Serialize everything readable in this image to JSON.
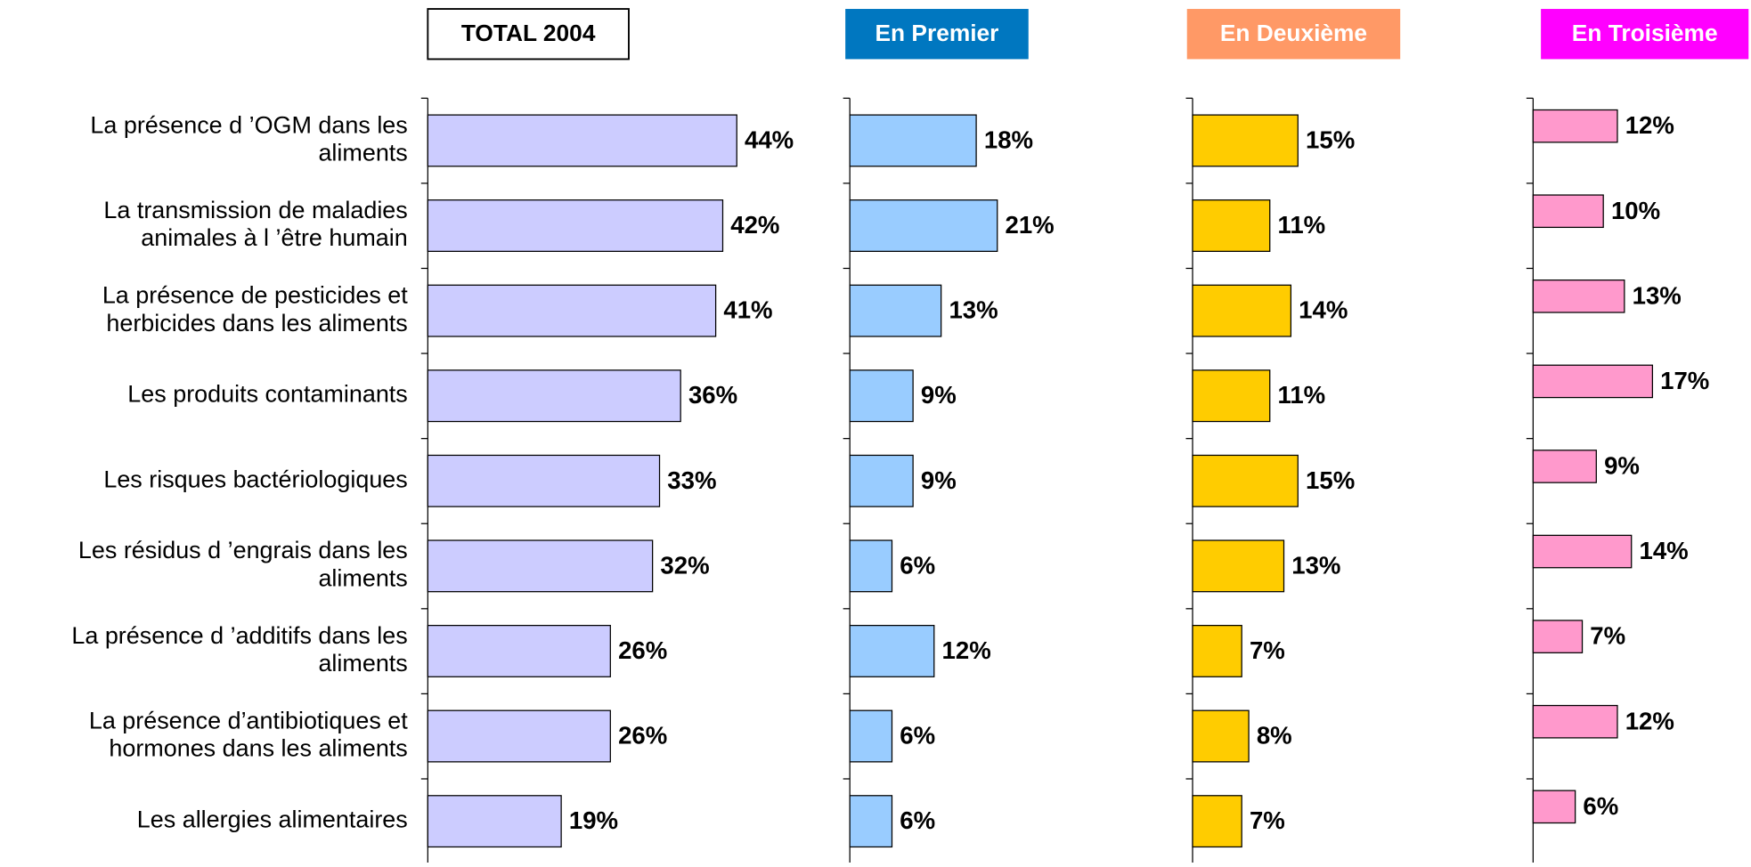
{
  "chart_data": {
    "type": "bar",
    "categories": [
      "La présence d ’OGM dans les\naliments",
      "La transmission de maladies\nanimales à l ’être humain",
      "La présence de pesticides et\nherbicides dans les aliments",
      "Les produits contaminants",
      "Les risques bactériologiques",
      "Les résidus d ’engrais dans les\naliments",
      "La présence d ’additifs dans les\naliments",
      "La présence d’antibiotiques et\nhormones dans les aliments",
      "Les allergies alimentaires"
    ],
    "series": [
      {
        "name": "TOTAL 2004",
        "color": "#ccccff",
        "values": [
          44,
          42,
          41,
          36,
          33,
          32,
          26,
          26,
          19
        ],
        "value_labels": [
          "44%",
          "42%",
          "41%",
          "36%",
          "33%",
          "32%",
          "26%",
          "26%",
          "19%"
        ]
      },
      {
        "name": "En Premier",
        "color": "#99ccff",
        "values": [
          18,
          21,
          13,
          9,
          9,
          6,
          12,
          6,
          6
        ],
        "value_labels": [
          "18%",
          "21%",
          "13%",
          "9%",
          "9%",
          "6%",
          "12%",
          "6%",
          "6%"
        ]
      },
      {
        "name": "En Deuxième",
        "color": "#ffcc00",
        "values": [
          15,
          11,
          14,
          11,
          15,
          13,
          7,
          8,
          7
        ],
        "value_labels": [
          "15%",
          "11%",
          "14%",
          "11%",
          "15%",
          "13%",
          "7%",
          "8%",
          "7%"
        ]
      },
      {
        "name": "En Troisième",
        "color": "#ff99cc",
        "values": [
          12,
          10,
          13,
          17,
          9,
          14,
          7,
          12,
          6
        ],
        "value_labels": [
          "12%",
          "10%",
          "13%",
          "17%",
          "9%",
          "14%",
          "7%",
          "12%",
          "6%"
        ]
      }
    ]
  }
}
